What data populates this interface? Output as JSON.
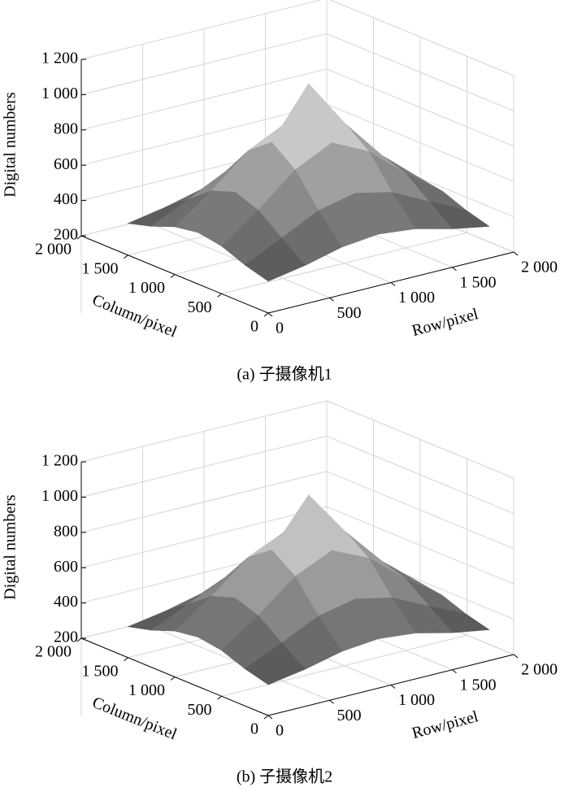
{
  "chart_data": [
    {
      "type": "surface",
      "title": "(a) 子摄像机1",
      "zlabel": "Digital numbers",
      "xlabel": "Column/pixel",
      "ylabel": "Row/pixel",
      "xlim": [
        0,
        2000
      ],
      "ylim": [
        0,
        2000
      ],
      "zlim": [
        200,
        1200
      ],
      "xticks": [
        0,
        500,
        {
          "value": 1000,
          "label": "1 000"
        },
        {
          "value": 1500,
          "label": "1 500"
        },
        {
          "value": 2000,
          "label": "2 000"
        }
      ],
      "yticks": [
        0,
        500,
        {
          "value": 1000,
          "label": "1 000"
        },
        {
          "value": 1500,
          "label": "1 500"
        },
        {
          "value": 2000,
          "label": "2 000"
        }
      ],
      "zticks": [
        200,
        400,
        600,
        800,
        {
          "value": 1000,
          "label": "1 000"
        },
        {
          "value": 1200,
          "label": "1 200"
        }
      ],
      "grid": true,
      "x": [
        0,
        250,
        500,
        750,
        1000,
        1250,
        1500
      ],
      "y": [
        0,
        300,
        600,
        900,
        1200,
        1500,
        1800
      ],
      "z": [
        [
          380,
          418,
          470,
          492,
          470,
          418,
          380
        ],
        [
          418,
          518,
          622,
          669,
          622,
          518,
          418
        ],
        [
          470,
          622,
          798,
          900,
          798,
          622,
          470
        ],
        [
          492,
          669,
          900,
          1180,
          900,
          669,
          492
        ],
        [
          470,
          622,
          798,
          900,
          798,
          622,
          470
        ],
        [
          418,
          518,
          622,
          669,
          622,
          518,
          418
        ],
        [
          380,
          418,
          470,
          492,
          470,
          418,
          380
        ]
      ]
    },
    {
      "type": "surface",
      "title": "(b) 子摄像机2",
      "zlabel": "Digital numbers",
      "xlabel": "Column/pixel",
      "ylabel": "Row/pixel",
      "xlim": [
        0,
        2000
      ],
      "ylim": [
        0,
        2000
      ],
      "zlim": [
        200,
        1200
      ],
      "xticks": [
        0,
        500,
        {
          "value": 1000,
          "label": "1 000"
        },
        {
          "value": 1500,
          "label": "1 500"
        },
        {
          "value": 2000,
          "label": "2 000"
        }
      ],
      "yticks": [
        0,
        500,
        {
          "value": 1000,
          "label": "1 000"
        },
        {
          "value": 1500,
          "label": "1 500"
        },
        {
          "value": 2000,
          "label": "2 000"
        }
      ],
      "zticks": [
        200,
        400,
        600,
        800,
        {
          "value": 1000,
          "label": "1 000"
        },
        {
          "value": 1200,
          "label": "1 200"
        }
      ],
      "grid": true,
      "x": [
        0,
        250,
        500,
        750,
        1000,
        1250,
        1500
      ],
      "y": [
        0,
        300,
        600,
        900,
        1200,
        1500,
        1800
      ],
      "z": [
        [
          375,
          410,
          460,
          480,
          460,
          410,
          375
        ],
        [
          410,
          505,
          605,
          650,
          605,
          505,
          410
        ],
        [
          460,
          605,
          775,
          870,
          775,
          605,
          460
        ],
        [
          480,
          650,
          870,
          1130,
          870,
          650,
          480
        ],
        [
          460,
          605,
          775,
          870,
          775,
          605,
          460
        ],
        [
          410,
          505,
          605,
          650,
          605,
          505,
          410
        ],
        [
          375,
          410,
          460,
          480,
          460,
          410,
          375
        ]
      ]
    }
  ]
}
